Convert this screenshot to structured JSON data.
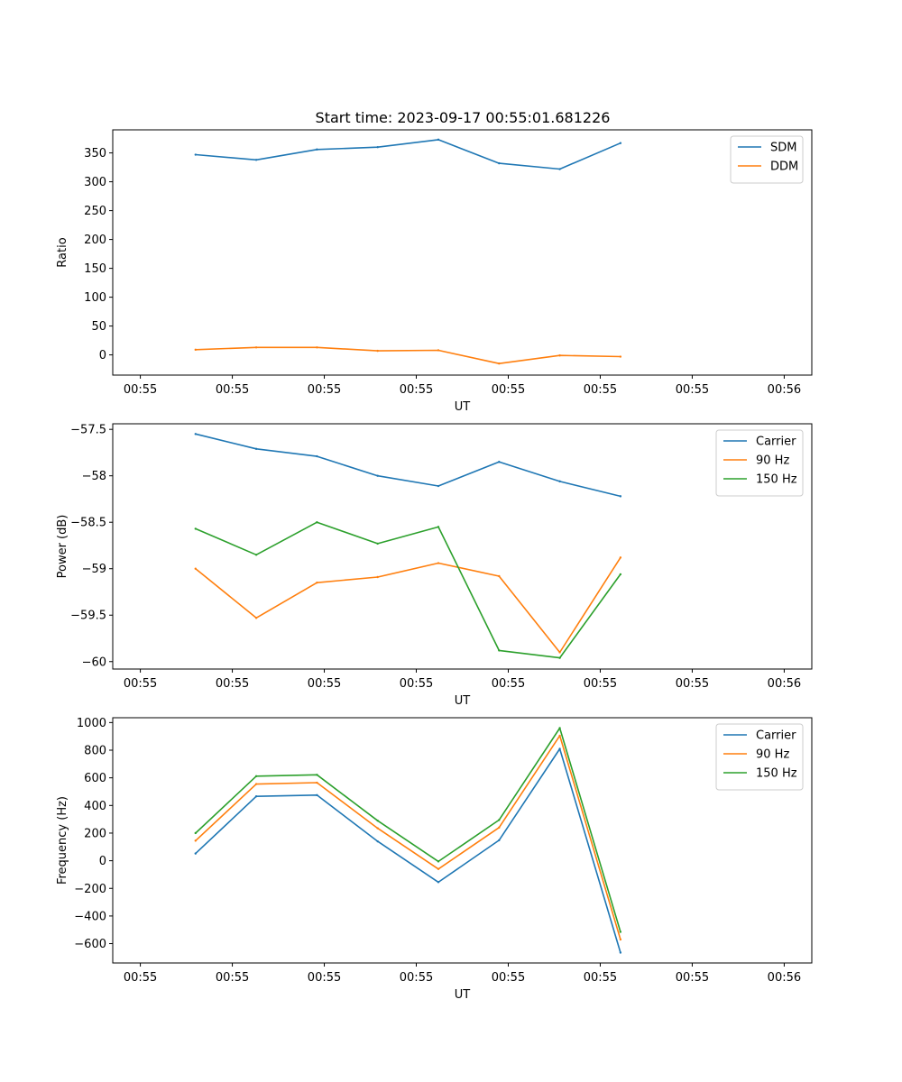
{
  "figure": {
    "title": "Start time: 2023-09-17 00:55:01.681226"
  },
  "chart_data": [
    {
      "type": "line",
      "title": "Start time: 2023-09-17 00:55:01.681226",
      "xlabel": "UT",
      "ylabel": "Ratio",
      "x_tick_labels": [
        "00:55",
        "00:55",
        "00:55",
        "00:55",
        "00:55",
        "00:55",
        "00:55",
        "00:56"
      ],
      "xlim": [
        -0.3,
        7.3
      ],
      "x": [
        0.6,
        1.26,
        1.92,
        2.58,
        3.24,
        3.9,
        4.56,
        5.22
      ],
      "ylim": [
        -35,
        390
      ],
      "yticks": [
        0,
        50,
        100,
        150,
        200,
        250,
        300,
        350
      ],
      "legend_location": "top-right",
      "series": [
        {
          "name": "SDM",
          "color": "#1f77b4",
          "values": [
            347,
            338,
            356,
            360,
            373,
            332,
            322,
            367
          ]
        },
        {
          "name": "DDM",
          "color": "#ff7f0e",
          "values": [
            9,
            13,
            13,
            7,
            8,
            -15,
            -1,
            -3
          ]
        }
      ]
    },
    {
      "type": "line",
      "title": "",
      "xlabel": "UT",
      "ylabel": "Power (dB)",
      "x_tick_labels": [
        "00:55",
        "00:55",
        "00:55",
        "00:55",
        "00:55",
        "00:55",
        "00:55",
        "00:56"
      ],
      "xlim": [
        -0.3,
        7.3
      ],
      "x": [
        0.6,
        1.26,
        1.92,
        2.58,
        3.24,
        3.9,
        4.56,
        5.22
      ],
      "ylim": [
        -60.08,
        -57.44
      ],
      "yticks": [
        -60.0,
        -59.5,
        -59.0,
        -58.5,
        -58.0,
        -57.5
      ],
      "legend_location": "top-right",
      "series": [
        {
          "name": "Carrier",
          "color": "#1f77b4",
          "values": [
            -57.55,
            -57.71,
            -57.79,
            -58.0,
            -58.11,
            -57.85,
            -58.06,
            -58.22
          ]
        },
        {
          "name": "90 Hz",
          "color": "#ff7f0e",
          "values": [
            -59.0,
            -59.53,
            -59.15,
            -59.09,
            -58.94,
            -59.08,
            -59.9,
            -58.88
          ]
        },
        {
          "name": "150 Hz",
          "color": "#2ca02c",
          "values": [
            -58.57,
            -58.85,
            -58.5,
            -58.73,
            -58.55,
            -59.88,
            -59.96,
            -59.06
          ]
        }
      ]
    },
    {
      "type": "line",
      "title": "",
      "xlabel": "UT",
      "ylabel": "Frequency (Hz)",
      "x_tick_labels": [
        "00:55",
        "00:55",
        "00:55",
        "00:55",
        "00:55",
        "00:55",
        "00:55",
        "00:56"
      ],
      "xlim": [
        -0.3,
        7.3
      ],
      "x": [
        0.6,
        1.26,
        1.92,
        2.58,
        3.24,
        3.9,
        4.56,
        5.22
      ],
      "ylim": [
        -740,
        1035
      ],
      "yticks": [
        -600,
        -400,
        -200,
        0,
        200,
        400,
        600,
        800,
        1000
      ],
      "legend_location": "top-right",
      "series": [
        {
          "name": "Carrier",
          "color": "#1f77b4",
          "values": [
            52,
            466,
            475,
            140,
            -155,
            148,
            810,
            -665
          ]
        },
        {
          "name": "90 Hz",
          "color": "#ff7f0e",
          "values": [
            145,
            555,
            565,
            235,
            -60,
            240,
            905,
            -570
          ]
        },
        {
          "name": "150 Hz",
          "color": "#2ca02c",
          "values": [
            200,
            612,
            622,
            290,
            -5,
            295,
            960,
            -515
          ]
        }
      ]
    }
  ]
}
